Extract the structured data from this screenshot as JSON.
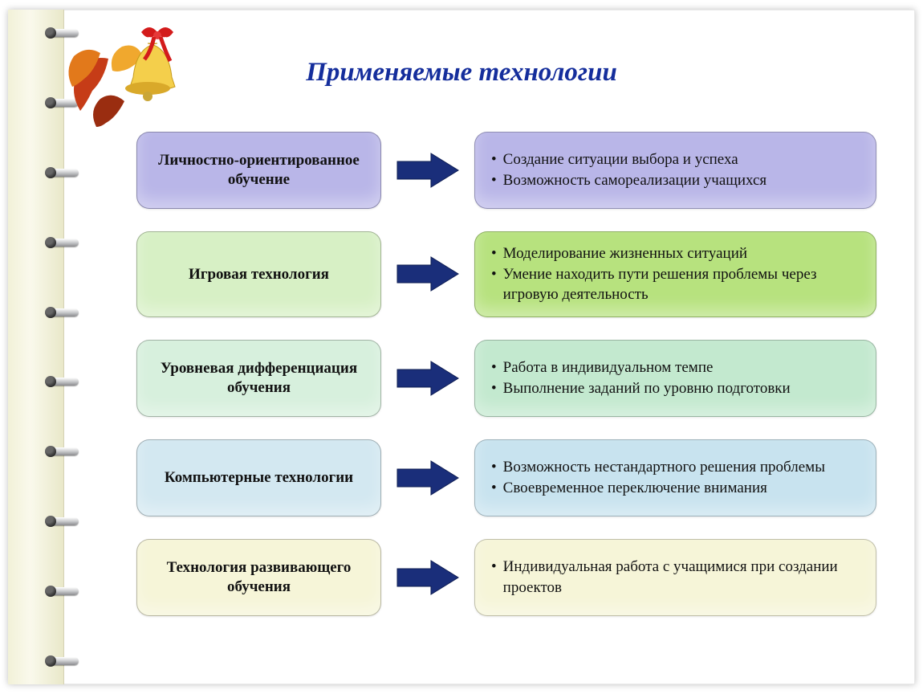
{
  "title": "Применяемые технологии",
  "title_color": "#152e9c",
  "title_fontsize": 33,
  "title_style": "italic bold",
  "arrow_color": "#1a2e7a",
  "left_box_width": 305,
  "right_box_min_width": 520,
  "box_border_radius": 16,
  "label_fontsize": 19,
  "bullet_fontsize": 19,
  "rows": [
    {
      "label": "Личностно-ориентированное обучение",
      "left_bg": "#b9b6e8",
      "right_bg": "#b9b6e8",
      "bullets": [
        "Создание ситуации выбора и успеха",
        "Возможность самореализации учащихся"
      ]
    },
    {
      "label": "Игровая технология",
      "left_bg": "#d7f0c5",
      "right_bg": "#b7e27e",
      "bullets": [
        "Моделирование жизненных ситуаций",
        "Умение находить пути решения проблемы через игровую деятельность"
      ]
    },
    {
      "label": "Уровневая дифференциация обучения",
      "left_bg": "#d7f0dd",
      "right_bg": "#c3e9cf",
      "bullets": [
        "Работа в индивидуальном темпе",
        "Выполнение заданий по уровню подготовки"
      ]
    },
    {
      "label": "Компьютерные технологии",
      "left_bg": "#d3e8f1",
      "right_bg": "#c8e3ef",
      "bullets": [
        "Возможность нестандартного решения проблемы",
        "Своевременное переключение внимания"
      ]
    },
    {
      "label": "Технология развивающего обучения",
      "left_bg": "#f6f5d8",
      "right_bg": "#f6f5d8",
      "bullets": [
        "Индивидуальная работа с учащимися при создании проектов"
      ]
    }
  ],
  "background_color": "#ffffff",
  "spine_gradient": [
    "#f2f1d8",
    "#faf9ec",
    "#e9e8c9"
  ],
  "ring_count": 10
}
